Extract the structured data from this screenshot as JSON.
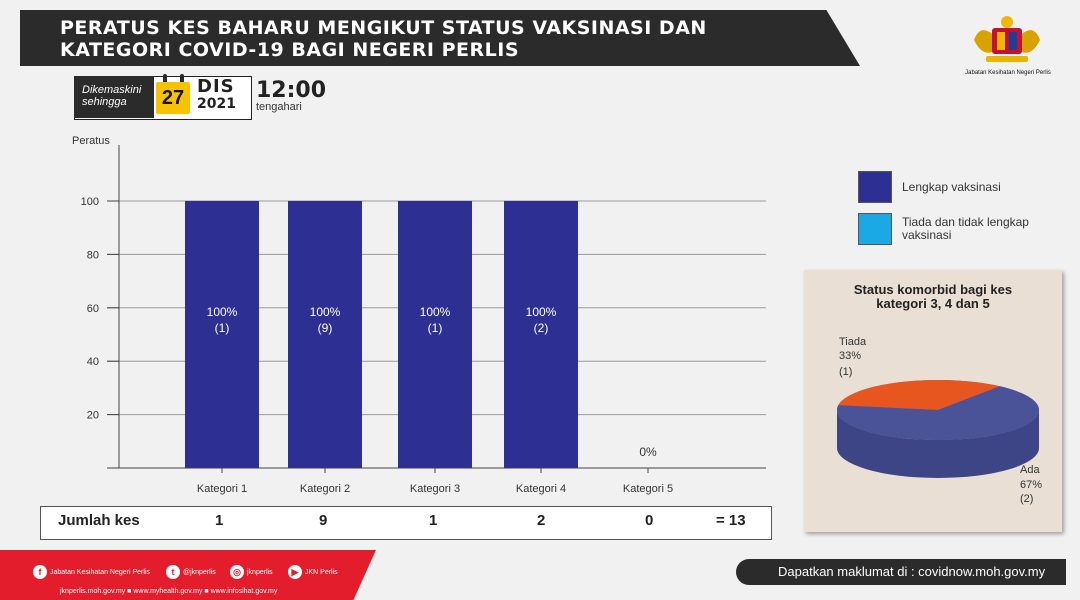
{
  "header": {
    "title_line1": "PERATUS KES BAHARU MENGIKUT STATUS VAKSINASI  DAN",
    "title_line2": "KATEGORI COVID-19 BAGI NEGERI PERLIS",
    "logo_text": "Jabatan Kesihatan Negeri Perlis"
  },
  "update": {
    "label_line1": "Dikemaskini",
    "label_line2": "sehingga",
    "day": "27",
    "month": "DIS",
    "year": "2021",
    "time": "12:00",
    "time_label": "tengahari"
  },
  "chart_data": [
    {
      "type": "bar",
      "ylabel": "Peratus",
      "ylim": [
        0,
        120
      ],
      "yticks": [
        20,
        40,
        60,
        80,
        100
      ],
      "grid": true,
      "categories": [
        "Kategori 1",
        "Kategori 2",
        "Kategori 3",
        "Kategori 4",
        "Kategori 5"
      ],
      "series": [
        {
          "name": "Lengkap vaksinasi",
          "color": "#2e2f92",
          "values": [
            100,
            100,
            100,
            100,
            0
          ]
        },
        {
          "name": "Tiada dan tidak lengkap vaksinasi",
          "color": "#1ba9e6",
          "values": [
            0,
            0,
            0,
            0,
            0
          ]
        }
      ],
      "bar_labels": [
        {
          "pct": "100%",
          "count": "(1)"
        },
        {
          "pct": "100%",
          "count": "(9)"
        },
        {
          "pct": "100%",
          "count": "(1)"
        },
        {
          "pct": "100%",
          "count": "(2)"
        },
        {
          "pct": "0%",
          "count": ""
        }
      ],
      "legend": [
        {
          "label": "Lengkap vaksinasi",
          "color": "#2e2f92"
        },
        {
          "label_line1": "Tiada dan tidak lengkap",
          "label_line2": "vaksinasi",
          "color": "#1ba9e6"
        }
      ],
      "legend_position": "right"
    },
    {
      "type": "pie",
      "title_line1": "Status komorbid bagi kes",
      "title_line2": "kategori 3, 4 dan 5",
      "slices": [
        {
          "label": "Tiada",
          "percent": 33,
          "pct_text": "33%",
          "count_text": "(1)",
          "color": "#e8561f"
        },
        {
          "label": "Ada",
          "percent": 67,
          "pct_text": "67%",
          "count_text": "(2)",
          "color": "#4a5298"
        }
      ]
    }
  ],
  "totals": {
    "label": "Jumlah kes",
    "values": [
      "1",
      "9",
      "1",
      "2",
      "0"
    ],
    "sum_text": "= 13"
  },
  "footer": {
    "social": [
      "Jabatan Kesihatan Negeri Perlis",
      "@jknperlis",
      "jknperlis",
      "JKN Perlis"
    ],
    "urls": "jknperlis.moh.gov.my ■ www.myhealth.gov.my ■ www.infosihat.gov.my",
    "info": "Dapatkan maklumat di : covidnow.moh.gov.my"
  }
}
